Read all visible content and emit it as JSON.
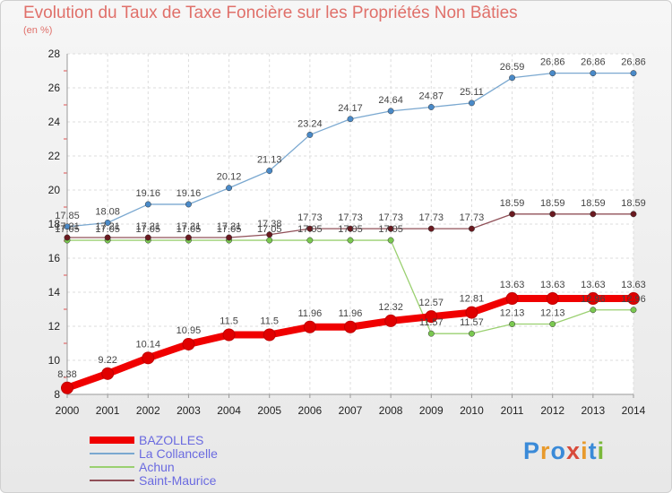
{
  "header": {
    "title": "Evolution du Taux de Taxe Foncière sur les Propriétés Non Bâties",
    "subtitle": "(en %)"
  },
  "logo": {
    "letters": [
      "P",
      "r",
      "o",
      "x",
      "i",
      "t",
      "i"
    ],
    "colors": [
      "#3a8ad8",
      "#e89a2c",
      "#3a8ad8",
      "#d84a3a",
      "#e89a2c",
      "#3a8ad8",
      "#7ab83a"
    ]
  },
  "chart_data": {
    "type": "line",
    "x": [
      "2000",
      "2001",
      "2002",
      "2003",
      "2004",
      "2005",
      "2006",
      "2007",
      "2008",
      "2009",
      "2010",
      "2011",
      "2012",
      "2013",
      "2014"
    ],
    "ylim": [
      8,
      28
    ],
    "yticks": [
      "8",
      "10",
      "12",
      "14",
      "16",
      "18",
      "20",
      "22",
      "24",
      "26",
      "28"
    ],
    "grid": true,
    "legend_position": "bottom-left",
    "series": [
      {
        "name": "La Collancelle",
        "color": "#7aa8d0",
        "marker": "#4a8ac8",
        "values": [
          17.85,
          18.08,
          19.16,
          19.16,
          20.12,
          21.13,
          23.24,
          24.17,
          24.64,
          24.87,
          25.11,
          26.59,
          26.86,
          26.86,
          26.86
        ],
        "labels": [
          "17.85",
          "18.08",
          "19.16",
          "19.16",
          "20.12",
          "21.13",
          "23.24",
          "24.17",
          "24.64",
          "24.87",
          "25.11",
          "26.59",
          "26.86",
          "26.86",
          "26.86"
        ]
      },
      {
        "name": "Achun",
        "color": "#9ad070",
        "marker": "#7ac850",
        "values": [
          17.05,
          17.05,
          17.05,
          17.05,
          17.05,
          17.05,
          17.05,
          17.05,
          17.05,
          11.57,
          11.57,
          12.13,
          12.13,
          12.96,
          12.96
        ],
        "labels": [
          "17.05",
          "17.05",
          "17.05",
          "17.05",
          "17.05",
          "17.05",
          "17.05",
          "17.05",
          "17.05",
          "11.57",
          "11.57",
          "12.13",
          "12.13",
          "12.96",
          "12.96"
        ]
      },
      {
        "name": "Saint-Maurice",
        "color": "#905058",
        "marker": "#6a1a20",
        "values": [
          17.21,
          17.21,
          17.21,
          17.21,
          17.21,
          17.38,
          17.73,
          17.73,
          17.73,
          17.73,
          17.73,
          18.59,
          18.59,
          18.59,
          18.59
        ],
        "labels": [
          "17.21",
          "17.21",
          "17.21",
          "17.21",
          "17.21",
          "17.38",
          "17.73",
          "17.73",
          "17.73",
          "17.73",
          "17.73",
          "18.59",
          "18.59",
          "18.59",
          "18.59"
        ]
      },
      {
        "name": "BAZOLLES",
        "color": "#f00000",
        "marker": "#e00000",
        "values": [
          8.38,
          9.22,
          10.14,
          10.95,
          11.5,
          11.5,
          11.96,
          11.96,
          12.32,
          12.57,
          12.81,
          13.63,
          13.63,
          13.63,
          13.63
        ],
        "labels": [
          "8.38",
          "9.22",
          "10.14",
          "10.95",
          "11.5",
          "11.5",
          "11.96",
          "11.96",
          "12.32",
          "12.57",
          "12.81",
          "13.63",
          "13.63",
          "13.63",
          "13.63"
        ]
      }
    ],
    "legend": [
      "BAZOLLES",
      "La Collancelle",
      "Achun",
      "Saint-Maurice"
    ]
  }
}
